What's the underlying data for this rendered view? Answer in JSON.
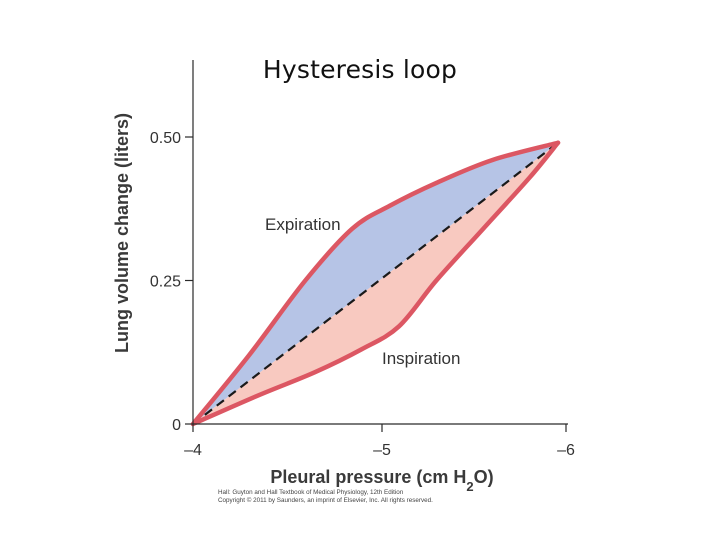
{
  "slide": {
    "title": "Hysteresis loop"
  },
  "chart_data": {
    "type": "line",
    "title": "",
    "xlabel": "Pleural pressure (cm H₂O)",
    "xlabel_parts": {
      "main": "Pleural pressure (cm H",
      "sub": "2",
      "end": "O)"
    },
    "ylabel": "Lung volume change (liters)",
    "xlim": [
      -4,
      -6
    ],
    "ylim": [
      0,
      0.6
    ],
    "x_ticks": [
      -4,
      -5,
      -6
    ],
    "x_tick_labels": [
      "–4",
      "–5",
      "–6"
    ],
    "y_ticks": [
      0,
      0.25,
      0.5
    ],
    "y_tick_labels": [
      "0",
      "0.25",
      "0.50"
    ],
    "grid": false,
    "legend": "none",
    "series": [
      {
        "name": "Expiration",
        "x": [
          -4.0,
          -4.3,
          -4.6,
          -4.85,
          -5.05,
          -5.3,
          -5.6,
          -5.95
        ],
        "y": [
          0.0,
          0.12,
          0.25,
          0.34,
          0.38,
          0.42,
          0.46,
          0.49
        ],
        "fill": "#b6c4e6"
      },
      {
        "name": "Inspiration",
        "x": [
          -4.0,
          -4.35,
          -4.65,
          -4.9,
          -5.1,
          -5.3,
          -5.55,
          -5.8,
          -5.95
        ],
        "y": [
          0.0,
          0.05,
          0.09,
          0.13,
          0.17,
          0.25,
          0.34,
          0.43,
          0.49
        ],
        "fill": "#f8c9c0"
      },
      {
        "name": "",
        "style": "dashed",
        "x": [
          -4.0,
          -5.95
        ],
        "y": [
          0.0,
          0.49
        ]
      }
    ],
    "annotations": [
      {
        "text": "Expiration",
        "x": -4.75,
        "y": 0.35
      },
      {
        "text": "Inspiration",
        "x": -5.25,
        "y": 0.115
      }
    ],
    "colors": {
      "curve": "#dc5763",
      "expiration_fill": "#b6c4e6",
      "inspiration_fill": "#f8c9c0",
      "dashed": "#1a1a1a",
      "axis": "#2a2a2a"
    }
  },
  "credit": {
    "line1": "Hall: Guyton and Hall Textbook of Medical Physiology, 12th Edition",
    "line2": "Copyright © 2011 by Saunders, an imprint of Elsevier, Inc. All rights reserved."
  }
}
